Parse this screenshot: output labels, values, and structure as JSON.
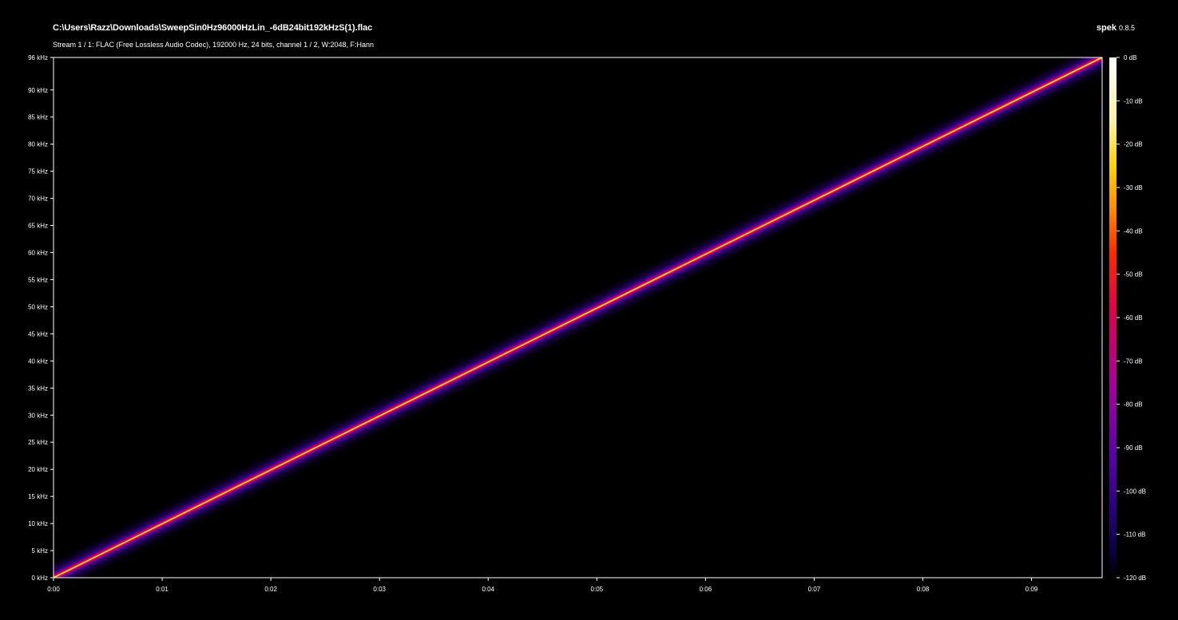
{
  "header": {
    "file_path": "C:\\Users\\Razz\\Downloads\\SweepSin0Hz96000HzLin_-6dB24bit192kHzS(1).flac",
    "stream_info": "Stream 1 / 1: FLAC (Free Lossless Audio Codec), 192000 Hz, 24 bits, channel 1 / 2, W:2048, F:Hann",
    "app_name": "spek",
    "app_version": "0.8.5"
  },
  "chart_data": {
    "type": "heatmap",
    "title": "",
    "xlabel": "",
    "ylabel": "",
    "x_ticks": [
      "0:00",
      "0:01",
      "0:02",
      "0:03",
      "0:04",
      "0:05",
      "0:06",
      "0:07",
      "0:08",
      "0:09"
    ],
    "x_tick_values": [
      0,
      0.01,
      0.02,
      0.03,
      0.04,
      0.05,
      0.06,
      0.07,
      0.08,
      0.09
    ],
    "xlim": [
      0,
      0.0965
    ],
    "y_ticks": [
      "0 kHz",
      "5 kHz",
      "10 kHz",
      "15 kHz",
      "20 kHz",
      "25 kHz",
      "30 kHz",
      "35 kHz",
      "40 kHz",
      "45 kHz",
      "50 kHz",
      "55 kHz",
      "60 kHz",
      "65 kHz",
      "70 kHz",
      "75 kHz",
      "80 kHz",
      "85 kHz",
      "90 kHz",
      "96 kHz"
    ],
    "y_tick_values": [
      0,
      5,
      10,
      15,
      20,
      25,
      30,
      35,
      40,
      45,
      50,
      55,
      60,
      65,
      70,
      75,
      80,
      85,
      90,
      96
    ],
    "ylim": [
      0,
      96
    ],
    "sweep": {
      "x": [
        0,
        0.0965
      ],
      "y": [
        0,
        96
      ]
    },
    "colorbar": {
      "labels": [
        "0 dB",
        "-10 dB",
        "-20 dB",
        "-30 dB",
        "-40 dB",
        "-50 dB",
        "-60 dB",
        "-70 dB",
        "-80 dB",
        "-90 dB",
        "-100 dB",
        "-110 dB",
        "-120 dB"
      ],
      "values": [
        0,
        -10,
        -20,
        -30,
        -40,
        -50,
        -60,
        -70,
        -80,
        -90,
        -100,
        -110,
        -120
      ],
      "range": [
        -120,
        0
      ],
      "stops": [
        {
          "value": 0,
          "color": "#ffffff"
        },
        {
          "value": -15,
          "color": "#fff1a0"
        },
        {
          "value": -25,
          "color": "#ffd400"
        },
        {
          "value": -35,
          "color": "#ff8a00"
        },
        {
          "value": -45,
          "color": "#ff2a00"
        },
        {
          "value": -58,
          "color": "#e0004a"
        },
        {
          "value": -75,
          "color": "#a8009a"
        },
        {
          "value": -92,
          "color": "#5a00a8"
        },
        {
          "value": -105,
          "color": "#28007a"
        },
        {
          "value": -114,
          "color": "#0a0040"
        },
        {
          "value": -120,
          "color": "#000000"
        }
      ]
    },
    "grid": false
  }
}
